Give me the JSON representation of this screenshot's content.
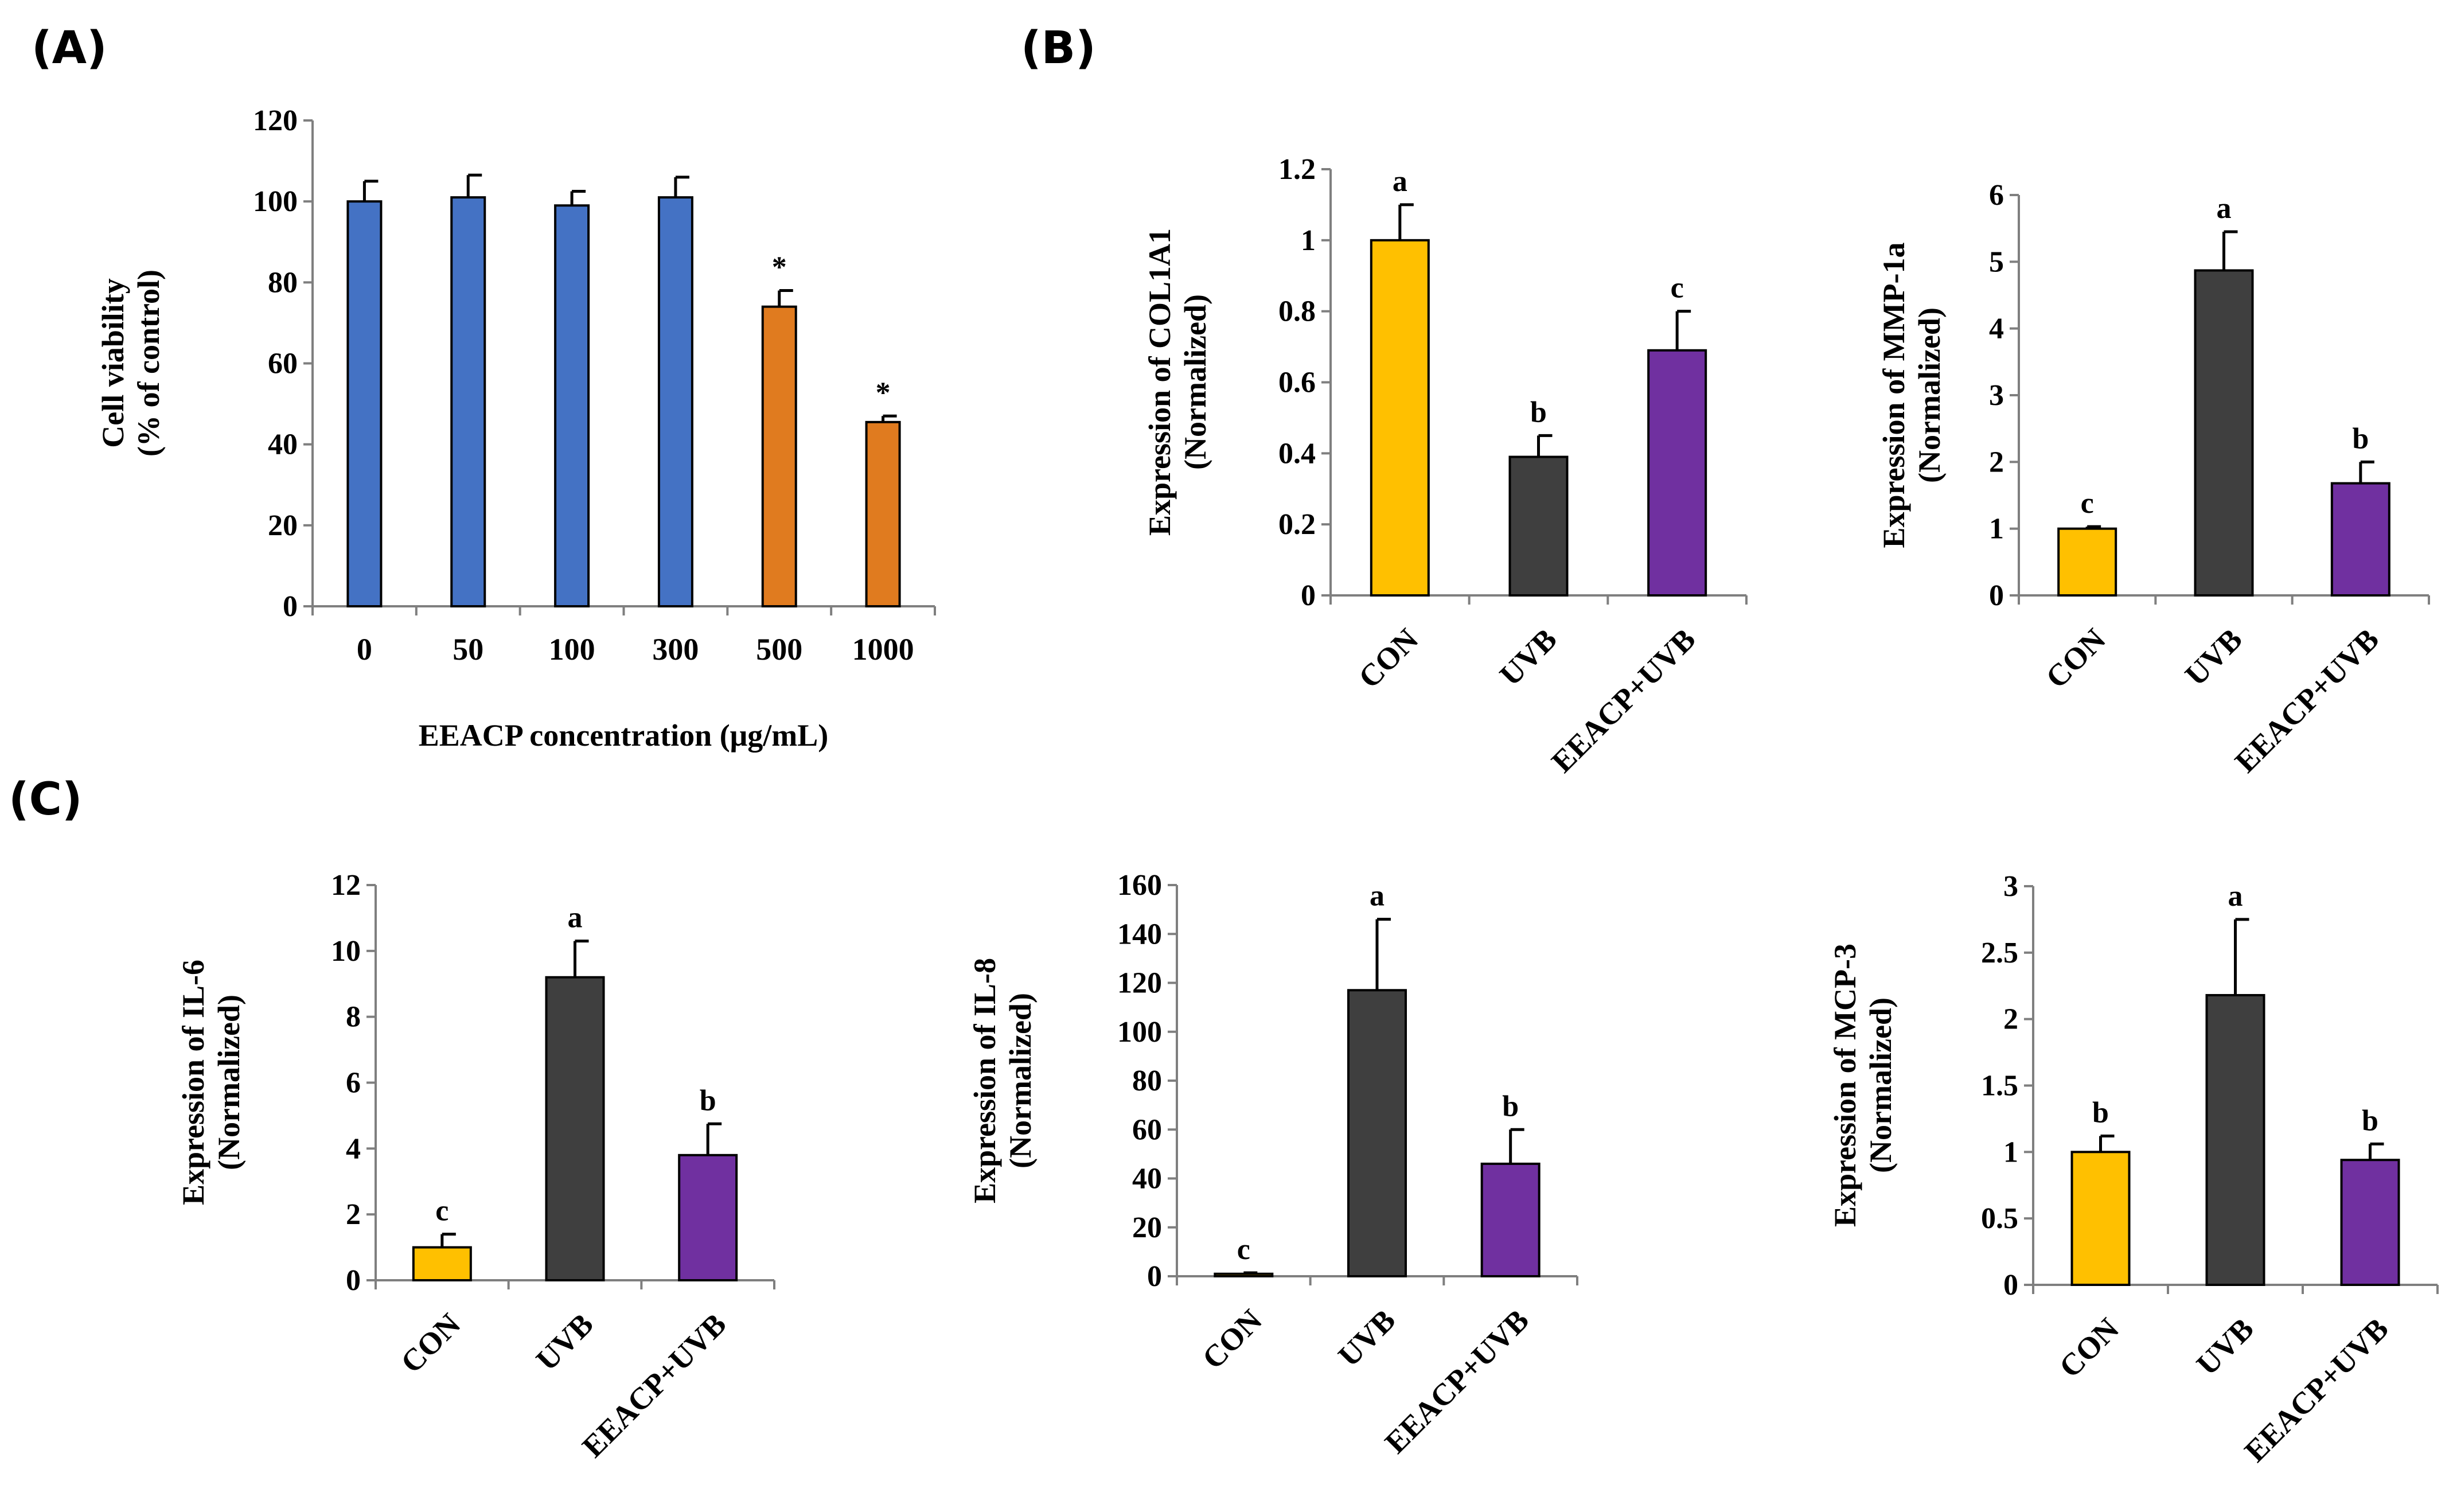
{
  "panels": {
    "a": "(A)",
    "b": "(B)",
    "c": "(C)"
  },
  "colors": {
    "blue": "#4472c4",
    "orange": "#e07b1f",
    "yellow": "#ffc000",
    "dark": "#3f3f3f",
    "purple": "#7030a0"
  },
  "chart_data": [
    {
      "id": "A",
      "type": "bar",
      "categories": [
        "0",
        "50",
        "100",
        "300",
        "500",
        "1000"
      ],
      "values": [
        100,
        101,
        99,
        101,
        74,
        45.5
      ],
      "errors": [
        5,
        5.5,
        3.5,
        5,
        4,
        1.5
      ],
      "annotations": [
        "",
        "",
        "",
        "",
        "*",
        "*"
      ],
      "colors": [
        "blue",
        "blue",
        "blue",
        "blue",
        "orange",
        "orange"
      ],
      "ylim": [
        0,
        120
      ],
      "yticks": [
        "0",
        "20",
        "40",
        "60",
        "80",
        "100",
        "120"
      ],
      "ylabel": [
        "Cell viability",
        "(% of control)"
      ],
      "xlabel": "EEACP concentration (μg/mL)"
    },
    {
      "id": "B1",
      "type": "bar",
      "categories": [
        "CON",
        "UVB",
        "EEACP+UVB"
      ],
      "values": [
        1.0,
        0.39,
        0.69
      ],
      "errors": [
        0.1,
        0.06,
        0.11
      ],
      "annotations": [
        "a",
        "b",
        "c"
      ],
      "colors": [
        "yellow",
        "dark",
        "purple"
      ],
      "ylim": [
        0,
        1.2
      ],
      "yticks": [
        "0",
        "0.2",
        "0.4",
        "0.6",
        "0.8",
        "1",
        "1.2"
      ],
      "ylabel": [
        "Expression of COL1A1",
        "(Normalized)"
      ]
    },
    {
      "id": "B2",
      "type": "bar",
      "categories": [
        "CON",
        "UVB",
        "EEACP+UVB"
      ],
      "values": [
        1.0,
        4.87,
        1.68
      ],
      "errors": [
        0.03,
        0.58,
        0.32
      ],
      "annotations": [
        "c",
        "a",
        "b"
      ],
      "colors": [
        "yellow",
        "dark",
        "purple"
      ],
      "ylim": [
        0,
        6
      ],
      "yticks": [
        "0",
        "1",
        "2",
        "3",
        "4",
        "5",
        "6"
      ],
      "ylabel": [
        "Expression of MMP-1a",
        "(Normalized)"
      ]
    },
    {
      "id": "C1",
      "type": "bar",
      "categories": [
        "CON",
        "UVB",
        "EEACP+UVB"
      ],
      "values": [
        1.0,
        9.2,
        3.8
      ],
      "errors": [
        0.4,
        1.1,
        0.95
      ],
      "annotations": [
        "c",
        "a",
        "b"
      ],
      "colors": [
        "yellow",
        "dark",
        "purple"
      ],
      "ylim": [
        0,
        12
      ],
      "yticks": [
        "0",
        "2",
        "4",
        "6",
        "8",
        "10",
        "12"
      ],
      "ylabel": [
        "Expression of IL-6",
        "(Normalized)"
      ]
    },
    {
      "id": "C2",
      "type": "bar",
      "categories": [
        "CON",
        "UVB",
        "EEACP+UVB"
      ],
      "values": [
        1.0,
        117,
        46
      ],
      "errors": [
        0.4,
        29,
        14
      ],
      "annotations": [
        "c",
        "a",
        "b"
      ],
      "colors": [
        "yellow",
        "dark",
        "purple"
      ],
      "ylim": [
        0,
        160
      ],
      "yticks": [
        "0",
        "20",
        "40",
        "60",
        "80",
        "100",
        "120",
        "140",
        "160"
      ],
      "ylabel": [
        "Expression of IL-8",
        "(Normalized)"
      ]
    },
    {
      "id": "C3",
      "type": "bar",
      "categories": [
        "CON",
        "UVB",
        "EEACP+UVB"
      ],
      "values": [
        1.0,
        2.18,
        0.94
      ],
      "errors": [
        0.12,
        0.57,
        0.12
      ],
      "annotations": [
        "b",
        "a",
        "b"
      ],
      "colors": [
        "yellow",
        "dark",
        "purple"
      ],
      "ylim": [
        0,
        3
      ],
      "yticks": [
        "0",
        "0.5",
        "1",
        "1.5",
        "2",
        "2.5",
        "3"
      ],
      "ylabel": [
        "Expression of MCP-3",
        "(Normalized)"
      ]
    }
  ]
}
